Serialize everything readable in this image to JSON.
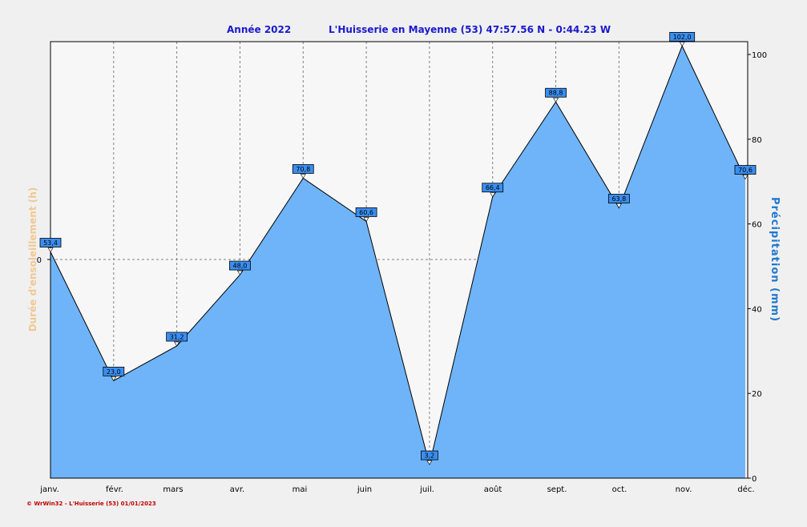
{
  "header": {
    "title_year": "Année  2022",
    "title_station": "L'Huisserie en Mayenne (53) 47:57.56 N - 0:44.23 W"
  },
  "footer": {
    "credit": "© WrWin32  -  L'Huisserie (53)  01/01/2023"
  },
  "colors": {
    "area": "#6fb4f8",
    "line": "#000000",
    "label_box": "#3a8ef0",
    "left_axis_label": "#f0c890",
    "right_axis_label": "#1f77d0"
  },
  "chart_data": {
    "type": "area",
    "categories": [
      "janv.",
      "févr.",
      "mars",
      "avr.",
      "mai",
      "juin",
      "juil.",
      "août",
      "sept.",
      "oct.",
      "nov.",
      "déc."
    ],
    "series": [
      {
        "name": "Précipitation  (mm)",
        "values": [
          53.4,
          23.0,
          31.2,
          48.0,
          70.8,
          60.6,
          3.2,
          66.4,
          88.8,
          63.8,
          102.0,
          70.6
        ],
        "labels": [
          "53,4",
          "23,0",
          "31,2",
          "48,0",
          "70,8",
          "60,6",
          "3,2",
          "66,4",
          "88,8",
          "63,8",
          "102,0",
          "70,6"
        ]
      }
    ],
    "ylabel_right": "Précipitation  (mm)",
    "ylabel_left": "Durée d'ensoleillement  (h)",
    "ylim_right": [
      0,
      100
    ],
    "yticks_right": [
      "0",
      "20",
      "40",
      "60",
      "80",
      "100"
    ],
    "yticks_left": [
      "0"
    ],
    "grid": true
  }
}
